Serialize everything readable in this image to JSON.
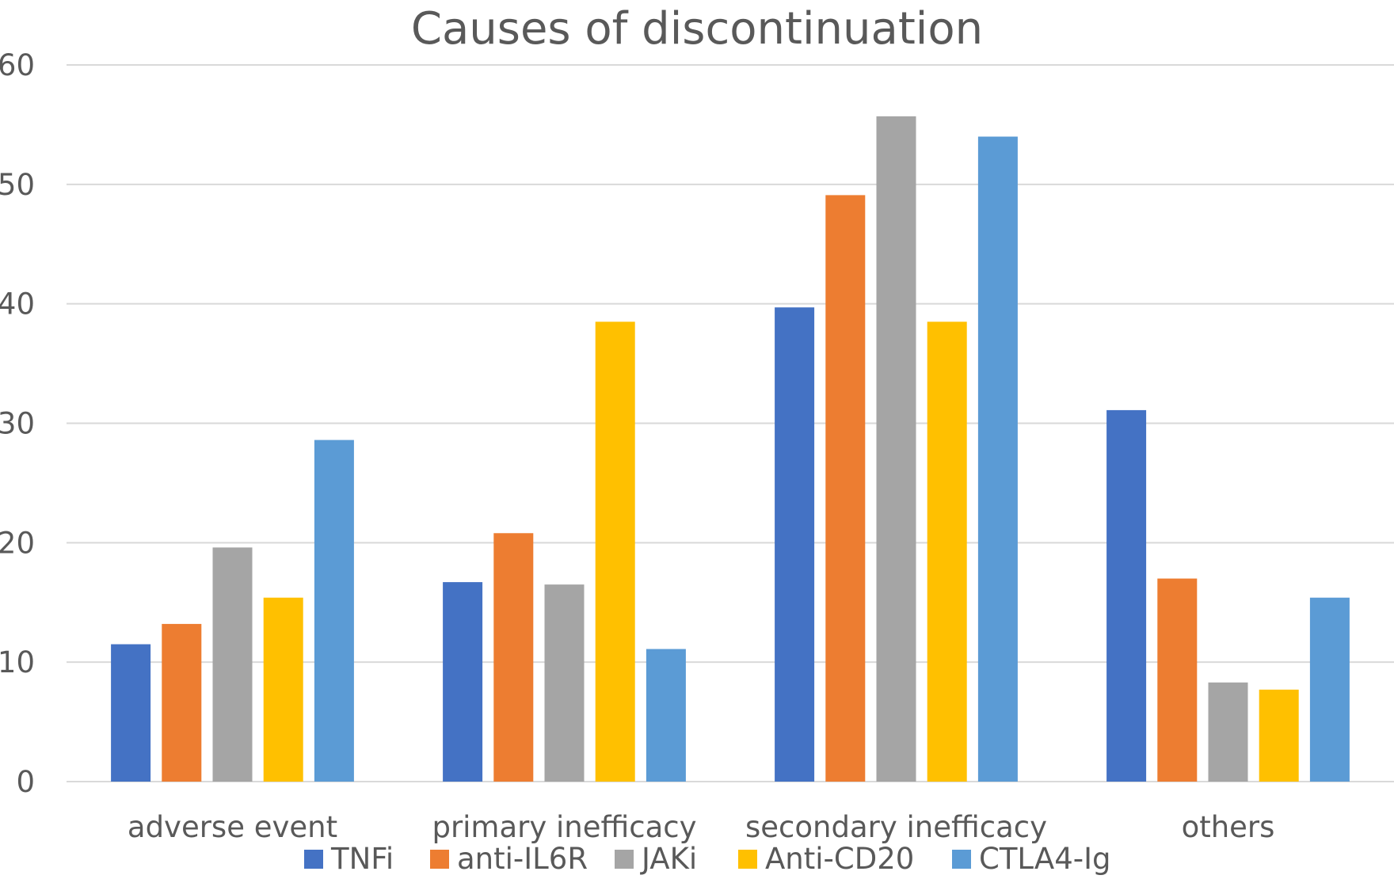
{
  "chart_data": {
    "type": "bar",
    "title": "Causes of discontinuation",
    "xlabel": "",
    "ylabel": "",
    "ylim": [
      0,
      60
    ],
    "yticks": [
      0,
      10,
      20,
      30,
      40,
      50,
      60
    ],
    "grid": true,
    "legend_position": "bottom",
    "categories": [
      "adverse event",
      "primary inefficacy",
      "secondary inefficacy",
      "others"
    ],
    "series": [
      {
        "name": "TNFi",
        "color": "#4472c4",
        "values": [
          11.5,
          16.7,
          39.7,
          31.1
        ]
      },
      {
        "name": "anti-IL6R",
        "color": "#ed7d31",
        "values": [
          13.2,
          20.8,
          49.1,
          17.0
        ]
      },
      {
        "name": "JAKi",
        "color": "#a5a5a5",
        "values": [
          19.6,
          16.5,
          55.7,
          8.3
        ]
      },
      {
        "name": "Anti-CD20",
        "color": "#ffc000",
        "values": [
          15.4,
          38.5,
          38.5,
          7.7
        ]
      },
      {
        "name": "CTLA4-Ig",
        "color": "#5b9bd5",
        "values": [
          28.6,
          11.1,
          54.0,
          15.4
        ]
      }
    ]
  }
}
